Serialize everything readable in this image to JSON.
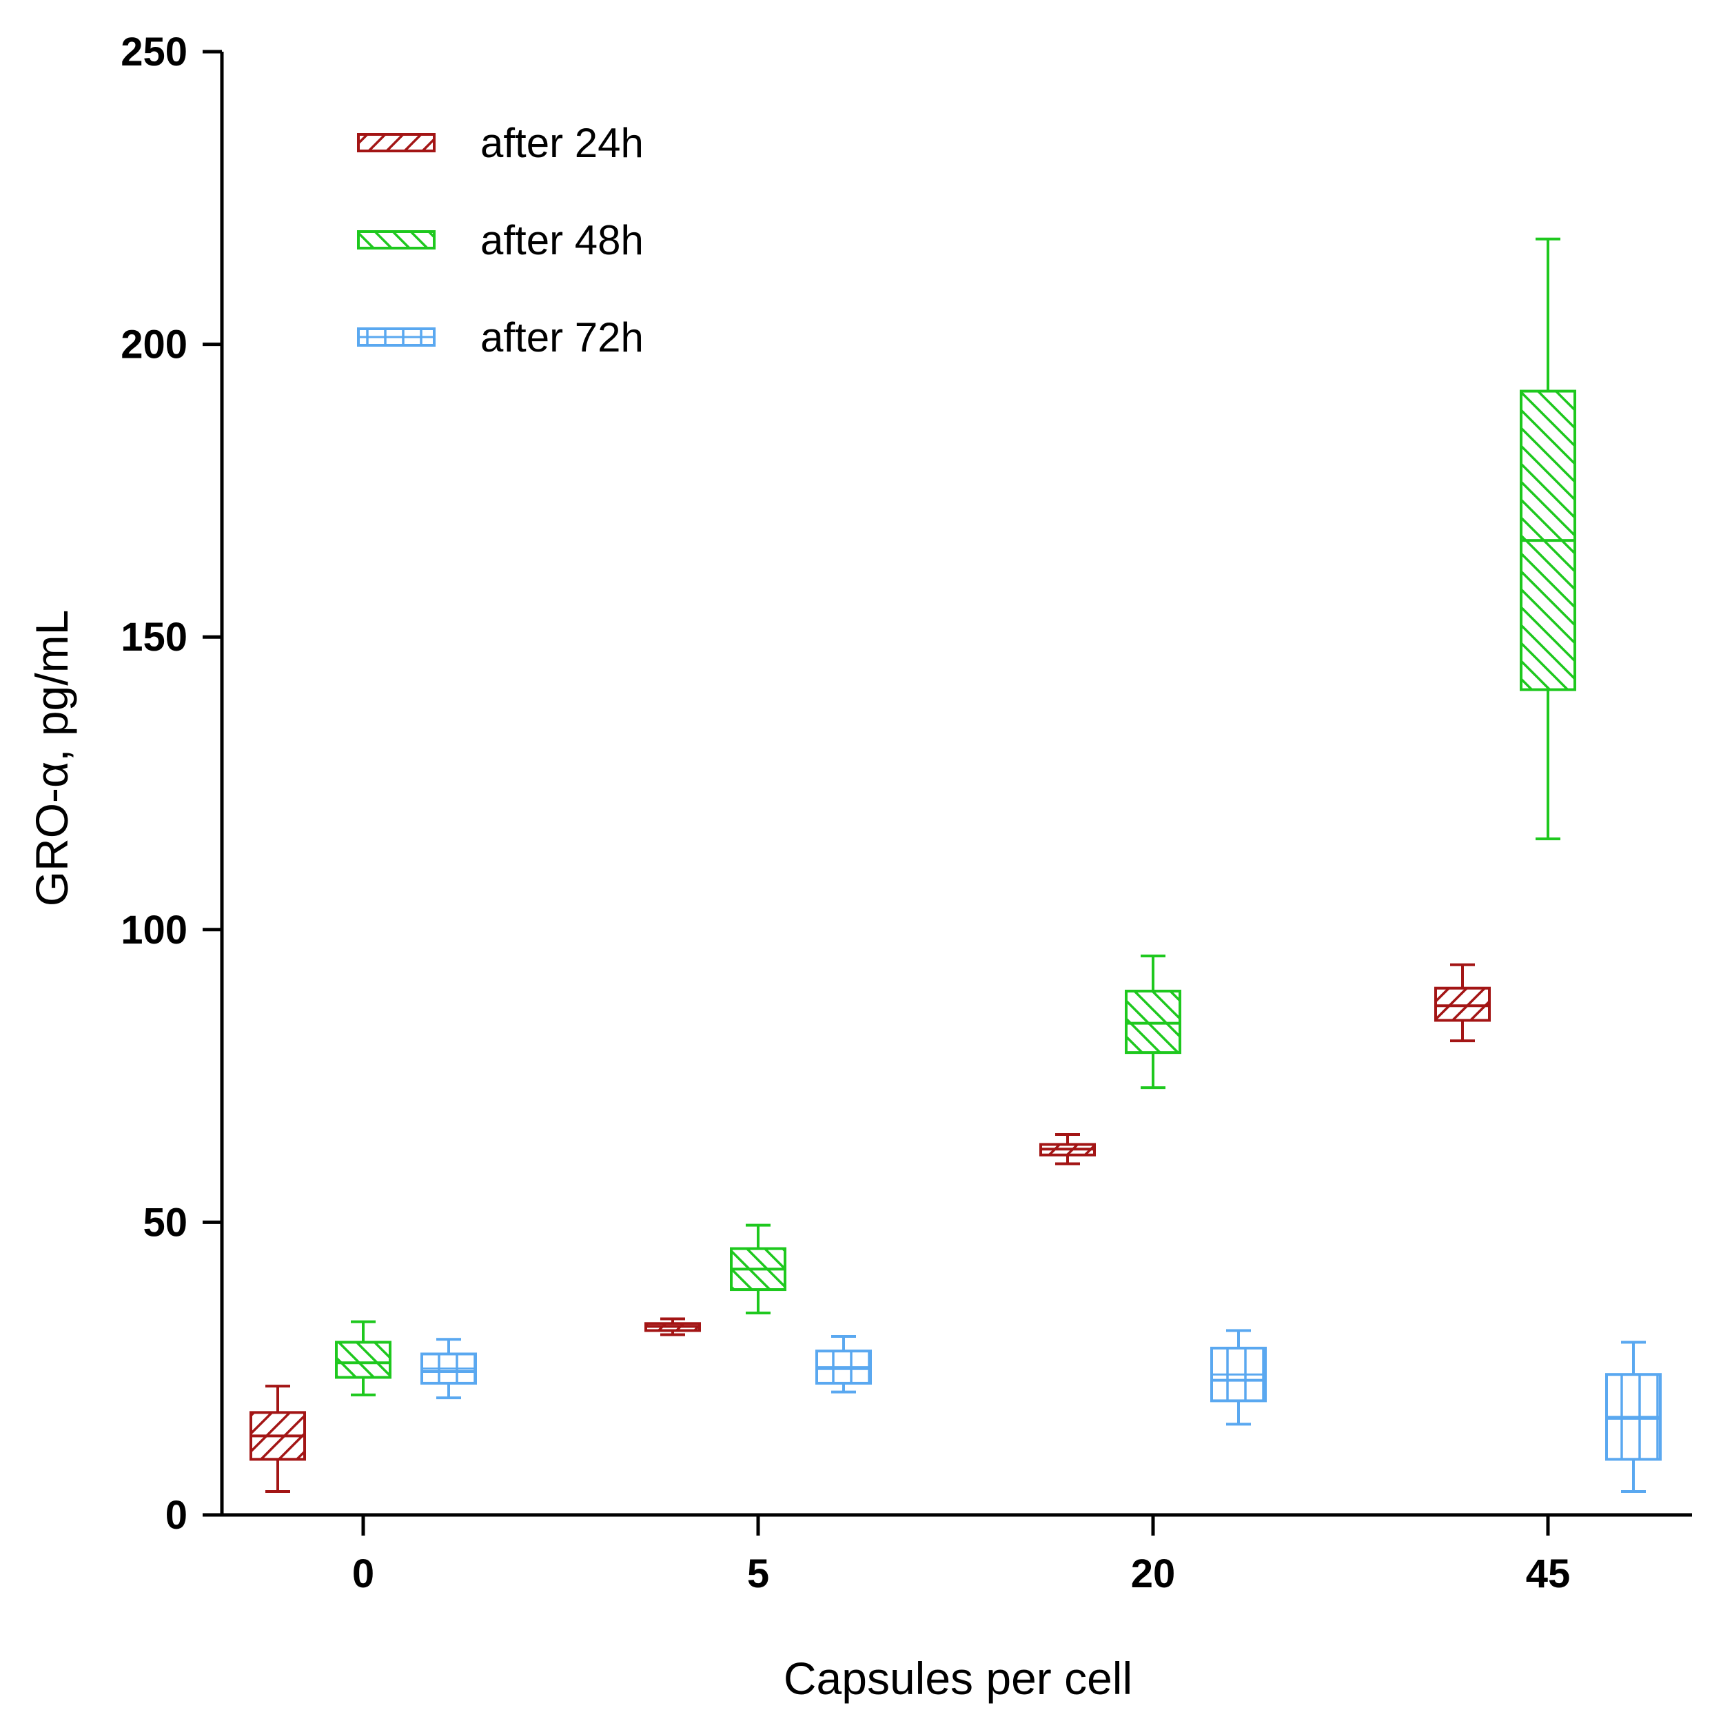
{
  "chart_data": {
    "type": "box",
    "title": "",
    "xlabel": "Capsules per cell",
    "ylabel": "GRO-α, pg/mL",
    "ylim": [
      0,
      250
    ],
    "yticks": [
      0,
      50,
      100,
      150,
      200,
      250
    ],
    "categories": [
      "0",
      "5",
      "20",
      "45"
    ],
    "legend_position": "top-left",
    "series": [
      {
        "name": "after 24h",
        "color": "#a31515",
        "pattern": "diagonal-up",
        "boxes": [
          {
            "category": "0",
            "min": 4,
            "q1": 9.5,
            "median": 13.5,
            "q3": 17.5,
            "max": 22
          },
          {
            "category": "5",
            "min": 30.8,
            "q1": 31.5,
            "median": 32.2,
            "q3": 32.7,
            "max": 33.5
          },
          {
            "category": "20",
            "min": 60,
            "q1": 61.5,
            "median": 62.5,
            "q3": 63.3,
            "max": 65
          },
          {
            "category": "45",
            "min": 81,
            "q1": 84.5,
            "median": 87,
            "q3": 90,
            "max": 94
          }
        ]
      },
      {
        "name": "after 48h",
        "color": "#1ec81e",
        "pattern": "diagonal-down",
        "boxes": [
          {
            "category": "0",
            "min": 20.5,
            "q1": 23.5,
            "median": 26,
            "q3": 29.5,
            "max": 33
          },
          {
            "category": "5",
            "min": 34.5,
            "q1": 38.5,
            "median": 42,
            "q3": 45.5,
            "max": 49.5
          },
          {
            "category": "20",
            "min": 73,
            "q1": 79,
            "median": 84,
            "q3": 89.5,
            "max": 95.5
          },
          {
            "category": "45",
            "min": 115.5,
            "q1": 141,
            "median": 166.5,
            "q3": 192,
            "max": 218
          }
        ]
      },
      {
        "name": "after 72h",
        "color": "#5aa8f0",
        "pattern": "grid",
        "boxes": [
          {
            "category": "0",
            "min": 20,
            "q1": 22.5,
            "median": 24.5,
            "q3": 27.5,
            "max": 30
          },
          {
            "category": "5",
            "min": 21,
            "q1": 22.5,
            "median": 25,
            "q3": 28,
            "max": 30.5
          },
          {
            "category": "20",
            "min": 15.5,
            "q1": 19.5,
            "median": 23,
            "q3": 28.5,
            "max": 31.5
          },
          {
            "category": "45",
            "min": 4,
            "q1": 9.5,
            "median": 16.5,
            "q3": 24,
            "max": 29.5
          }
        ]
      }
    ]
  }
}
